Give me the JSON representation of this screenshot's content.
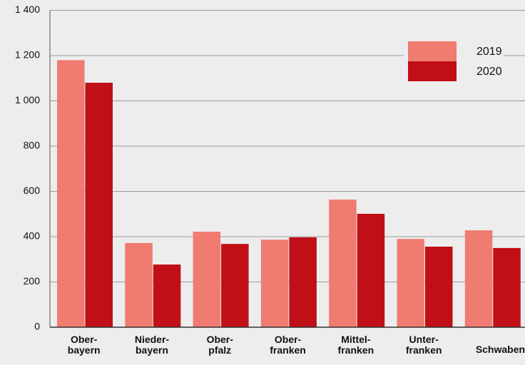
{
  "chart_data": {
    "type": "bar",
    "categories": [
      [
        "Ober-",
        "bayern"
      ],
      [
        "Nieder-",
        "bayern"
      ],
      [
        "Ober-",
        "pfalz"
      ],
      [
        "Ober-",
        "franken"
      ],
      [
        "Mittel-",
        "franken"
      ],
      [
        "Unter-",
        "franken"
      ],
      [
        "Schwaben"
      ]
    ],
    "series": [
      {
        "name": "2019",
        "color": "#f07b70",
        "values": [
          1180,
          372,
          422,
          387,
          564,
          390,
          428
        ]
      },
      {
        "name": "2020",
        "color": "#c00f17",
        "values": [
          1080,
          277,
          368,
          397,
          501,
          356,
          350
        ]
      }
    ],
    "ylim": [
      0,
      1400
    ],
    "yticks": [
      0,
      200,
      400,
      600,
      800,
      {
        "value": 1000,
        "label": "1 000"
      },
      {
        "value": 1200,
        "label": "1 200"
      },
      {
        "value": 1400,
        "label": "1 400"
      }
    ],
    "grid": true,
    "legend": "top-right"
  }
}
